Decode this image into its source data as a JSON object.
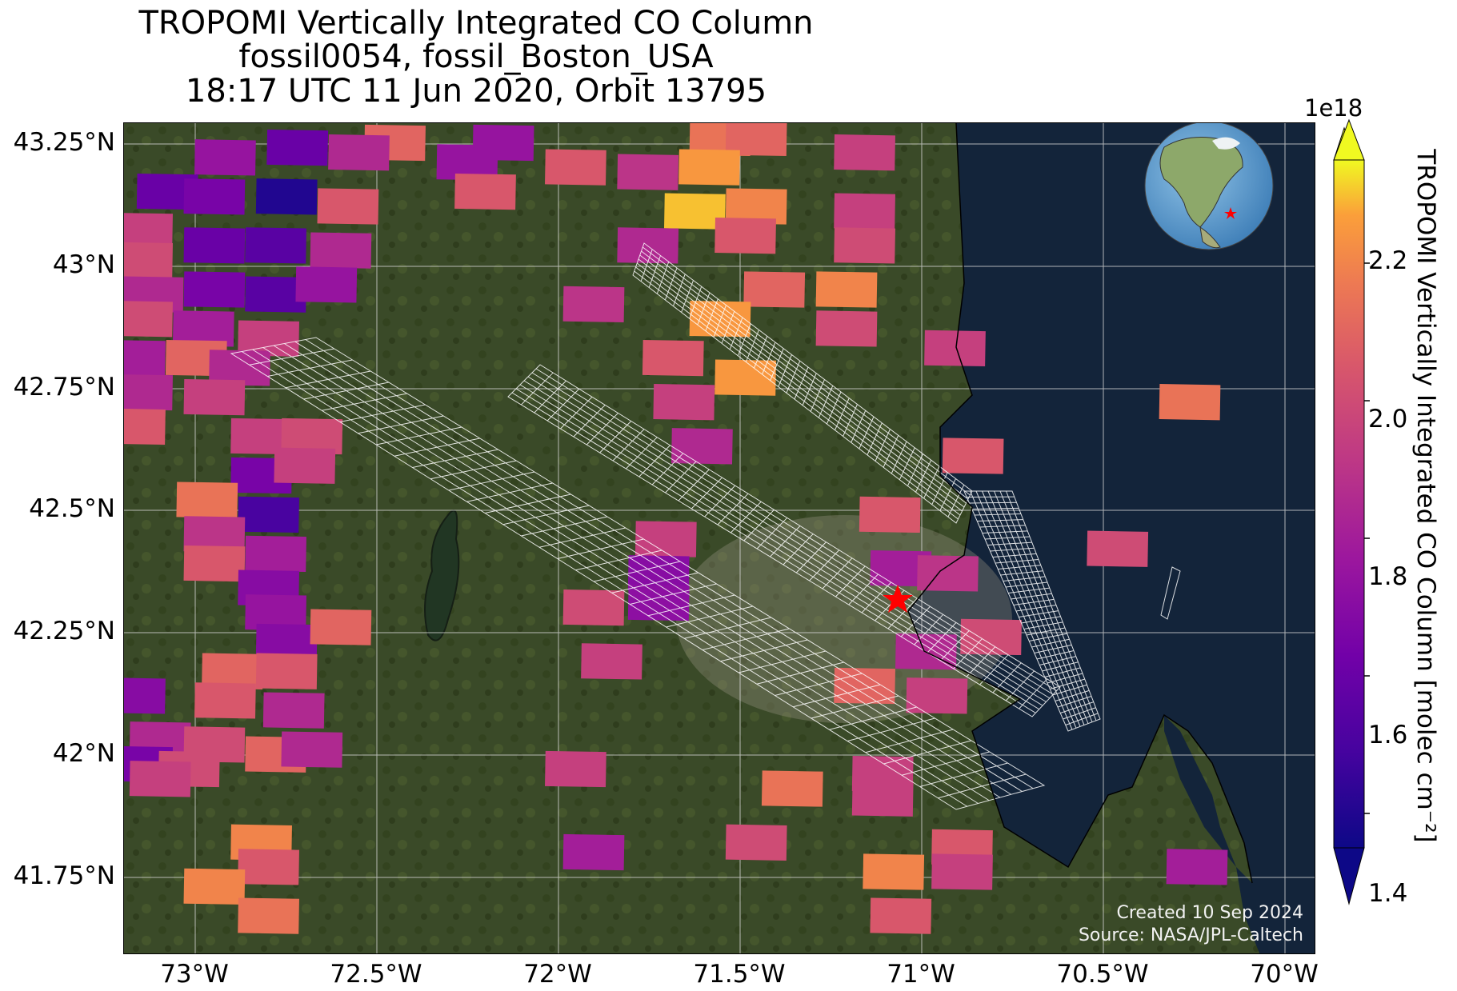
{
  "title": {
    "line1": "TROPOMI Vertically Integrated CO Column",
    "line2": "fossil0054, fossil_Boston_USA",
    "line3": "18:17 UTC 11 Jun 2020, Orbit 13795"
  },
  "map": {
    "background": "satellite imagery",
    "lon_range": [
      -73.2,
      -69.9
    ],
    "lat_range": [
      41.6,
      43.3
    ],
    "lat_ticks": [
      "43.25°N",
      "43°N",
      "42.75°N",
      "42.5°N",
      "42.25°N",
      "42°N",
      "41.75°N"
    ],
    "lon_ticks": [
      "73°W",
      "72.5°W",
      "72°W",
      "71.5°W",
      "71°W",
      "70.5°W",
      "70°W"
    ],
    "site_marker": {
      "name": "fossil_Boston_USA",
      "lon": -71.06,
      "lat": 42.36,
      "color": "#ff0000",
      "icon": "star-icon"
    },
    "inset": {
      "type": "globe",
      "icon": "globe-icon",
      "marker_color": "#ff0000"
    },
    "credit_created": "Created 10 Sep 2024",
    "credit_source": "Source: NASA/JPL-Caltech"
  },
  "colorbar": {
    "label": "TROPOMI Vertically Integrated CO Column [molec cm⁻²]",
    "multiplier": "1e18",
    "ticks": [
      "1.4",
      "1.6",
      "1.8",
      "2.0",
      "2.2"
    ],
    "range": [
      1.35,
      2.35
    ],
    "colormap": "plasma",
    "extend": "both"
  },
  "chart_data": {
    "type": "heatmap",
    "title": "TROPOMI Vertically Integrated CO Column",
    "xlabel": "",
    "ylabel": "",
    "xlim": [
      -73.2,
      -69.9
    ],
    "ylim": [
      41.6,
      43.3
    ],
    "units": "molec cm^-2 (x1e18)",
    "pixels": [
      {
        "lon": -72.45,
        "lat": 43.26,
        "value": 2.1
      },
      {
        "lon": -72.15,
        "lat": 43.26,
        "value": 1.75
      },
      {
        "lon": -71.55,
        "lat": 43.27,
        "value": 2.15
      },
      {
        "lon": -71.45,
        "lat": 43.27,
        "value": 2.1
      },
      {
        "lon": -72.92,
        "lat": 43.23,
        "value": 1.75
      },
      {
        "lon": -72.72,
        "lat": 43.25,
        "value": 1.6
      },
      {
        "lon": -72.55,
        "lat": 43.24,
        "value": 1.85
      },
      {
        "lon": -72.25,
        "lat": 43.22,
        "value": 1.75
      },
      {
        "lon": -71.95,
        "lat": 43.21,
        "value": 2.05
      },
      {
        "lon": -71.75,
        "lat": 43.2,
        "value": 1.9
      },
      {
        "lon": -71.58,
        "lat": 43.21,
        "value": 2.25
      },
      {
        "lon": -71.15,
        "lat": 43.24,
        "value": 1.95
      },
      {
        "lon": -73.08,
        "lat": 43.16,
        "value": 1.6
      },
      {
        "lon": -72.95,
        "lat": 43.15,
        "value": 1.65
      },
      {
        "lon": -72.75,
        "lat": 43.15,
        "value": 1.4
      },
      {
        "lon": -72.58,
        "lat": 43.13,
        "value": 2.05
      },
      {
        "lon": -72.2,
        "lat": 43.16,
        "value": 2.05
      },
      {
        "lon": -71.62,
        "lat": 43.12,
        "value": 2.3
      },
      {
        "lon": -71.45,
        "lat": 43.13,
        "value": 2.2
      },
      {
        "lon": -71.15,
        "lat": 43.12,
        "value": 1.95
      },
      {
        "lon": -73.15,
        "lat": 43.08,
        "value": 1.95
      },
      {
        "lon": -73.15,
        "lat": 43.02,
        "value": 2.0
      },
      {
        "lon": -72.95,
        "lat": 43.05,
        "value": 1.6
      },
      {
        "lon": -72.78,
        "lat": 43.05,
        "value": 1.55
      },
      {
        "lon": -72.6,
        "lat": 43.04,
        "value": 1.85
      },
      {
        "lon": -71.75,
        "lat": 43.05,
        "value": 1.85
      },
      {
        "lon": -71.48,
        "lat": 43.07,
        "value": 2.05
      },
      {
        "lon": -71.15,
        "lat": 43.05,
        "value": 2.0
      },
      {
        "lon": -73.12,
        "lat": 42.95,
        "value": 1.85
      },
      {
        "lon": -72.95,
        "lat": 42.96,
        "value": 1.65
      },
      {
        "lon": -72.78,
        "lat": 42.95,
        "value": 1.55
      },
      {
        "lon": -72.64,
        "lat": 42.97,
        "value": 1.75
      },
      {
        "lon": -71.9,
        "lat": 42.93,
        "value": 1.9
      },
      {
        "lon": -71.4,
        "lat": 42.96,
        "value": 2.1
      },
      {
        "lon": -71.2,
        "lat": 42.96,
        "value": 2.2
      },
      {
        "lon": -73.15,
        "lat": 42.9,
        "value": 2.0
      },
      {
        "lon": -72.98,
        "lat": 42.88,
        "value": 1.8
      },
      {
        "lon": -72.8,
        "lat": 42.86,
        "value": 1.95
      },
      {
        "lon": -71.55,
        "lat": 42.9,
        "value": 2.25
      },
      {
        "lon": -71.2,
        "lat": 42.88,
        "value": 2.0
      },
      {
        "lon": -73.17,
        "lat": 42.82,
        "value": 1.8
      },
      {
        "lon": -73.0,
        "lat": 42.82,
        "value": 2.1
      },
      {
        "lon": -72.88,
        "lat": 42.8,
        "value": 1.85
      },
      {
        "lon": -71.68,
        "lat": 42.82,
        "value": 2.05
      },
      {
        "lon": -71.48,
        "lat": 42.78,
        "value": 2.25
      },
      {
        "lon": -70.9,
        "lat": 42.84,
        "value": 1.95
      },
      {
        "lon": -73.15,
        "lat": 42.75,
        "value": 1.85
      },
      {
        "lon": -72.95,
        "lat": 42.74,
        "value": 1.95
      },
      {
        "lon": -71.65,
        "lat": 42.73,
        "value": 1.95
      },
      {
        "lon": -70.25,
        "lat": 42.73,
        "value": 2.15
      },
      {
        "lon": -73.17,
        "lat": 42.68,
        "value": 2.05
      },
      {
        "lon": -71.6,
        "lat": 42.64,
        "value": 1.85
      },
      {
        "lon": -72.82,
        "lat": 42.66,
        "value": 1.95
      },
      {
        "lon": -72.68,
        "lat": 42.66,
        "value": 2.0
      },
      {
        "lon": -70.85,
        "lat": 42.62,
        "value": 2.05
      },
      {
        "lon": -72.82,
        "lat": 42.58,
        "value": 1.65
      },
      {
        "lon": -72.7,
        "lat": 42.6,
        "value": 1.95
      },
      {
        "lon": -72.97,
        "lat": 42.53,
        "value": 2.15
      },
      {
        "lon": -72.8,
        "lat": 42.5,
        "value": 1.5
      },
      {
        "lon": -72.95,
        "lat": 42.46,
        "value": 1.9
      },
      {
        "lon": -72.78,
        "lat": 42.42,
        "value": 1.8
      },
      {
        "lon": -72.95,
        "lat": 42.4,
        "value": 2.05
      },
      {
        "lon": -72.8,
        "lat": 42.35,
        "value": 1.7
      },
      {
        "lon": -72.78,
        "lat": 42.3,
        "value": 1.75
      },
      {
        "lon": -72.75,
        "lat": 42.24,
        "value": 1.7
      },
      {
        "lon": -72.6,
        "lat": 42.27,
        "value": 2.1
      },
      {
        "lon": -71.7,
        "lat": 42.45,
        "value": 1.95
      },
      {
        "lon": -71.72,
        "lat": 42.38,
        "value": 1.7
      },
      {
        "lon": -71.72,
        "lat": 42.32,
        "value": 1.72
      },
      {
        "lon": -71.9,
        "lat": 42.31,
        "value": 2.0
      },
      {
        "lon": -71.85,
        "lat": 42.2,
        "value": 1.95
      },
      {
        "lon": -71.08,
        "lat": 42.5,
        "value": 2.05
      },
      {
        "lon": -71.05,
        "lat": 42.39,
        "value": 1.8
      },
      {
        "lon": -70.92,
        "lat": 42.38,
        "value": 1.9
      },
      {
        "lon": -70.45,
        "lat": 42.43,
        "value": 2.0
      },
      {
        "lon": -70.8,
        "lat": 42.25,
        "value": 2.0
      },
      {
        "lon": -70.98,
        "lat": 42.22,
        "value": 1.85
      },
      {
        "lon": -71.15,
        "lat": 42.15,
        "value": 2.1
      },
      {
        "lon": -70.95,
        "lat": 42.13,
        "value": 1.95
      },
      {
        "lon": -73.17,
        "lat": 42.13,
        "value": 1.7
      },
      {
        "lon": -72.9,
        "lat": 42.18,
        "value": 2.1
      },
      {
        "lon": -72.75,
        "lat": 42.18,
        "value": 2.05
      },
      {
        "lon": -72.92,
        "lat": 42.12,
        "value": 2.05
      },
      {
        "lon": -72.73,
        "lat": 42.1,
        "value": 1.85
      },
      {
        "lon": -73.1,
        "lat": 42.04,
        "value": 1.85
      },
      {
        "lon": -72.95,
        "lat": 42.03,
        "value": 2.0
      },
      {
        "lon": -72.78,
        "lat": 42.01,
        "value": 2.1
      },
      {
        "lon": -73.15,
        "lat": 41.99,
        "value": 1.65
      },
      {
        "lon": -73.02,
        "lat": 41.98,
        "value": 2.0
      },
      {
        "lon": -72.68,
        "lat": 42.02,
        "value": 1.85
      },
      {
        "lon": -73.1,
        "lat": 41.96,
        "value": 1.95
      },
      {
        "lon": -71.95,
        "lat": 41.98,
        "value": 1.95
      },
      {
        "lon": -71.35,
        "lat": 41.94,
        "value": 2.15
      },
      {
        "lon": -71.1,
        "lat": 41.97,
        "value": 1.95
      },
      {
        "lon": -71.1,
        "lat": 41.92,
        "value": 1.95
      },
      {
        "lon": -72.82,
        "lat": 41.83,
        "value": 2.2
      },
      {
        "lon": -72.8,
        "lat": 41.78,
        "value": 2.05
      },
      {
        "lon": -71.9,
        "lat": 41.81,
        "value": 1.8
      },
      {
        "lon": -71.45,
        "lat": 41.83,
        "value": 2.0
      },
      {
        "lon": -70.88,
        "lat": 41.82,
        "value": 2.05
      },
      {
        "lon": -70.88,
        "lat": 41.77,
        "value": 1.95
      },
      {
        "lon": -71.07,
        "lat": 41.77,
        "value": 2.2
      },
      {
        "lon": -72.95,
        "lat": 41.74,
        "value": 2.2
      },
      {
        "lon": -72.8,
        "lat": 41.68,
        "value": 2.15
      },
      {
        "lon": -71.05,
        "lat": 41.68,
        "value": 2.05
      },
      {
        "lon": -70.23,
        "lat": 41.78,
        "value": 1.8
      }
    ]
  }
}
